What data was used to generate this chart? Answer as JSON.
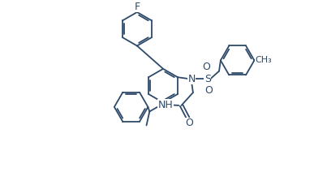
{
  "bond_color": "#2d4a6b",
  "background": "#ffffff",
  "label_color": "#2d4a6b",
  "figsize": [
    3.87,
    2.12
  ],
  "dpi": 100,
  "xlim": [
    0,
    10
  ],
  "ylim": [
    0,
    5.5
  ]
}
